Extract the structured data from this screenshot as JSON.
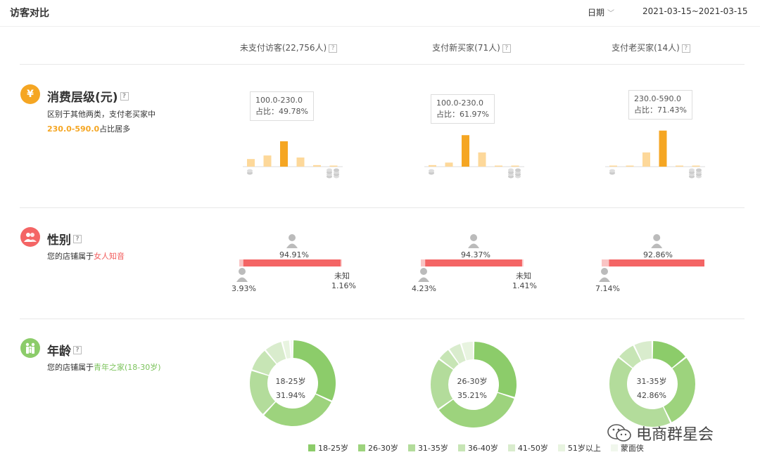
{
  "header": {
    "title": "访客对比",
    "date_label": "日期",
    "date_range": "2021-03-15~2021-03-15"
  },
  "columns": [
    {
      "label": "未支付访客(22,756人)"
    },
    {
      "label": "支付新买家(71人)"
    },
    {
      "label": "支付老买家(14人)"
    }
  ],
  "help_glyph": "?",
  "colors": {
    "orange": "#f5a623",
    "orange_light": "#fdd89a",
    "red": "#f46565",
    "pink": "#f9c4c4",
    "green_dark": "#8ccc6a",
    "green_mid": "#a9d98f",
    "green_light": "#cdeabe"
  },
  "consumption": {
    "icon": "¥",
    "title": "消费层级(元)",
    "desc_line1": "区别于其他两类，支付老买家中",
    "desc_hl": "230.0-590.0",
    "desc_tail": "占比居多",
    "charts": [
      {
        "tooltip_range": "100.0-230.0",
        "tooltip_share": "占比：49.78%",
        "values": [
          15,
          22,
          50,
          18,
          3,
          2
        ],
        "highlight": 2
      },
      {
        "tooltip_range": "100.0-230.0",
        "tooltip_share": "占比：61.97%",
        "values": [
          3,
          8,
          62,
          28,
          1,
          1
        ],
        "highlight": 2
      },
      {
        "tooltip_range": "230.0-590.0",
        "tooltip_share": "占比：71.43%",
        "values": [
          2,
          2,
          28,
          71,
          2,
          2
        ],
        "highlight": 3
      }
    ]
  },
  "gender": {
    "title": "性别",
    "desc_pre": "您的店铺属于",
    "desc_hl": "女人知音",
    "unknown_label": "未知",
    "charts": [
      {
        "female": "94.91%",
        "male": "3.93%",
        "unknown": "1.16%",
        "female_v": 94.91,
        "male_v": 3.93,
        "unknown_v": 1.16,
        "show_unknown": true
      },
      {
        "female": "94.37%",
        "male": "4.23%",
        "unknown": "1.41%",
        "female_v": 94.37,
        "male_v": 4.23,
        "unknown_v": 1.41,
        "show_unknown": true
      },
      {
        "female": "92.86%",
        "male": "7.14%",
        "unknown": "",
        "female_v": 92.86,
        "male_v": 7.14,
        "unknown_v": 0,
        "show_unknown": false
      }
    ]
  },
  "age": {
    "title": "年龄",
    "desc_pre": "您的店铺属于",
    "desc_hl": "青年之家(18-30岁)",
    "charts": [
      {
        "center_label": "18-25岁",
        "center_value": "31.94%",
        "slices": [
          31.94,
          30,
          18,
          9,
          7,
          3,
          1.06
        ]
      },
      {
        "center_label": "26-30岁",
        "center_value": "35.21%",
        "slices": [
          30,
          35.21,
          20,
          5,
          5,
          4.79,
          0
        ]
      },
      {
        "center_label": "31-35岁",
        "center_value": "42.86%",
        "slices": [
          14.29,
          28.57,
          42.86,
          7.14,
          7.14,
          0,
          0
        ]
      }
    ],
    "legend": [
      "18-25岁",
      "26-30岁",
      "31-35岁",
      "36-40岁",
      "41-50岁",
      "51岁以上",
      "蒙面侠"
    ],
    "legend_colors": [
      "#8ccc6a",
      "#9dd37d",
      "#b3dc9b",
      "#c7e5b5",
      "#d9eccd",
      "#e8f4e0",
      "#f1f7ed"
    ]
  },
  "watermark": "电商群星会"
}
